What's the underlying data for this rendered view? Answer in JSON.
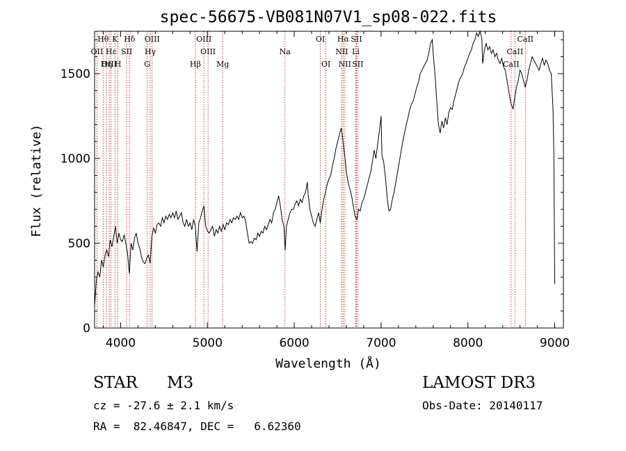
{
  "chart_data": {
    "type": "line",
    "title": "spec-56675-VB081N07V1_sp08-022.fits",
    "xlabel": "Wavelength (Å)",
    "ylabel": "Flux (relative)",
    "xlim": [
      3700,
      9100
    ],
    "ylim": [
      0,
      1750
    ],
    "xticks": [
      4000,
      5000,
      6000,
      7000,
      8000,
      9000
    ],
    "yticks": [
      0,
      500,
      1000,
      1500
    ],
    "grid": false,
    "series": [
      {
        "name": "flux",
        "color": "#000000",
        "points": [
          [
            3700,
            130
          ],
          [
            3720,
            280
          ],
          [
            3740,
            330
          ],
          [
            3760,
            300
          ],
          [
            3780,
            400
          ],
          [
            3800,
            360
          ],
          [
            3820,
            430
          ],
          [
            3840,
            460
          ],
          [
            3860,
            420
          ],
          [
            3880,
            520
          ],
          [
            3900,
            480
          ],
          [
            3920,
            540
          ],
          [
            3940,
            600
          ],
          [
            3960,
            500
          ],
          [
            3980,
            560
          ],
          [
            4000,
            520
          ],
          [
            4020,
            510
          ],
          [
            4040,
            550
          ],
          [
            4060,
            500
          ],
          [
            4080,
            440
          ],
          [
            4100,
            320
          ],
          [
            4120,
            500
          ],
          [
            4140,
            460
          ],
          [
            4160,
            530
          ],
          [
            4180,
            560
          ],
          [
            4200,
            500
          ],
          [
            4220,
            470
          ],
          [
            4240,
            420
          ],
          [
            4260,
            390
          ],
          [
            4280,
            380
          ],
          [
            4300,
            410
          ],
          [
            4320,
            430
          ],
          [
            4340,
            380
          ],
          [
            4360,
            540
          ],
          [
            4380,
            590
          ],
          [
            4400,
            560
          ],
          [
            4420,
            610
          ],
          [
            4440,
            620
          ],
          [
            4460,
            600
          ],
          [
            4480,
            650
          ],
          [
            4500,
            620
          ],
          [
            4520,
            660
          ],
          [
            4540,
            640
          ],
          [
            4560,
            670
          ],
          [
            4580,
            650
          ],
          [
            4600,
            680
          ],
          [
            4620,
            650
          ],
          [
            4640,
            690
          ],
          [
            4660,
            640
          ],
          [
            4680,
            660
          ],
          [
            4700,
            680
          ],
          [
            4720,
            620
          ],
          [
            4740,
            600
          ],
          [
            4760,
            640
          ],
          [
            4780,
            600
          ],
          [
            4800,
            620
          ],
          [
            4820,
            580
          ],
          [
            4840,
            640
          ],
          [
            4860,
            600
          ],
          [
            4880,
            450
          ],
          [
            4900,
            620
          ],
          [
            4920,
            650
          ],
          [
            4940,
            690
          ],
          [
            4960,
            720
          ],
          [
            4970,
            650
          ],
          [
            4980,
            600
          ],
          [
            5000,
            570
          ],
          [
            5020,
            560
          ],
          [
            5040,
            580
          ],
          [
            5060,
            600
          ],
          [
            5080,
            540
          ],
          [
            5100,
            580
          ],
          [
            5120,
            560
          ],
          [
            5140,
            600
          ],
          [
            5160,
            570
          ],
          [
            5180,
            610
          ],
          [
            5200,
            580
          ],
          [
            5220,
            620
          ],
          [
            5240,
            610
          ],
          [
            5260,
            640
          ],
          [
            5280,
            620
          ],
          [
            5300,
            650
          ],
          [
            5320,
            640
          ],
          [
            5340,
            660
          ],
          [
            5360,
            640
          ],
          [
            5380,
            680
          ],
          [
            5400,
            650
          ],
          [
            5420,
            660
          ],
          [
            5440,
            630
          ],
          [
            5460,
            560
          ],
          [
            5480,
            500
          ],
          [
            5500,
            510
          ],
          [
            5520,
            500
          ],
          [
            5540,
            530
          ],
          [
            5560,
            520
          ],
          [
            5580,
            560
          ],
          [
            5600,
            540
          ],
          [
            5620,
            570
          ],
          [
            5640,
            560
          ],
          [
            5660,
            600
          ],
          [
            5680,
            580
          ],
          [
            5700,
            610
          ],
          [
            5720,
            640
          ],
          [
            5740,
            620
          ],
          [
            5760,
            680
          ],
          [
            5780,
            700
          ],
          [
            5800,
            740
          ],
          [
            5820,
            780
          ],
          [
            5840,
            720
          ],
          [
            5860,
            640
          ],
          [
            5880,
            600
          ],
          [
            5895,
            460
          ],
          [
            5910,
            600
          ],
          [
            5930,
            640
          ],
          [
            5950,
            680
          ],
          [
            5970,
            700
          ],
          [
            5990,
            700
          ],
          [
            6010,
            730
          ],
          [
            6030,
            750
          ],
          [
            6050,
            720
          ],
          [
            6070,
            760
          ],
          [
            6090,
            740
          ],
          [
            6110,
            780
          ],
          [
            6130,
            800
          ],
          [
            6150,
            860
          ],
          [
            6160,
            790
          ],
          [
            6180,
            700
          ],
          [
            6200,
            660
          ],
          [
            6220,
            620
          ],
          [
            6240,
            600
          ],
          [
            6260,
            640
          ],
          [
            6280,
            680
          ],
          [
            6300,
            620
          ],
          [
            6320,
            700
          ],
          [
            6340,
            760
          ],
          [
            6360,
            800
          ],
          [
            6380,
            850
          ],
          [
            6400,
            880
          ],
          [
            6420,
            900
          ],
          [
            6440,
            960
          ],
          [
            6460,
            1000
          ],
          [
            6480,
            1060
          ],
          [
            6500,
            1100
          ],
          [
            6520,
            1140
          ],
          [
            6540,
            1180
          ],
          [
            6560,
            1110
          ],
          [
            6580,
            1020
          ],
          [
            6600,
            920
          ],
          [
            6620,
            860
          ],
          [
            6640,
            820
          ],
          [
            6660,
            780
          ],
          [
            6680,
            720
          ],
          [
            6700,
            660
          ],
          [
            6720,
            640
          ],
          [
            6740,
            700
          ],
          [
            6760,
            690
          ],
          [
            6780,
            740
          ],
          [
            6800,
            760
          ],
          [
            6820,
            800
          ],
          [
            6840,
            840
          ],
          [
            6860,
            880
          ],
          [
            6880,
            920
          ],
          [
            6900,
            980
          ],
          [
            6920,
            1050
          ],
          [
            6940,
            1000
          ],
          [
            6960,
            1080
          ],
          [
            6980,
            1160
          ],
          [
            7000,
            1250
          ],
          [
            7010,
            1020
          ],
          [
            7030,
            980
          ],
          [
            7050,
            890
          ],
          [
            7070,
            770
          ],
          [
            7090,
            690
          ],
          [
            7110,
            700
          ],
          [
            7130,
            760
          ],
          [
            7150,
            800
          ],
          [
            7170,
            860
          ],
          [
            7190,
            920
          ],
          [
            7210,
            980
          ],
          [
            7230,
            1040
          ],
          [
            7250,
            1100
          ],
          [
            7270,
            1150
          ],
          [
            7290,
            1200
          ],
          [
            7310,
            1240
          ],
          [
            7330,
            1290
          ],
          [
            7350,
            1320
          ],
          [
            7370,
            1340
          ],
          [
            7390,
            1380
          ],
          [
            7410,
            1420
          ],
          [
            7430,
            1450
          ],
          [
            7450,
            1500
          ],
          [
            7470,
            1520
          ],
          [
            7490,
            1540
          ],
          [
            7510,
            1560
          ],
          [
            7530,
            1580
          ],
          [
            7550,
            1620
          ],
          [
            7570,
            1680
          ],
          [
            7590,
            1700
          ],
          [
            7600,
            1620
          ],
          [
            7620,
            1500
          ],
          [
            7640,
            1350
          ],
          [
            7660,
            1200
          ],
          [
            7680,
            1150
          ],
          [
            7700,
            1220
          ],
          [
            7720,
            1180
          ],
          [
            7740,
            1240
          ],
          [
            7760,
            1200
          ],
          [
            7780,
            1270
          ],
          [
            7800,
            1300
          ],
          [
            7820,
            1290
          ],
          [
            7840,
            1340
          ],
          [
            7860,
            1380
          ],
          [
            7880,
            1420
          ],
          [
            7900,
            1460
          ],
          [
            7920,
            1480
          ],
          [
            7940,
            1500
          ],
          [
            7960,
            1540
          ],
          [
            7980,
            1560
          ],
          [
            8000,
            1590
          ],
          [
            8020,
            1620
          ],
          [
            8040,
            1640
          ],
          [
            8060,
            1680
          ],
          [
            8080,
            1700
          ],
          [
            8100,
            1740
          ],
          [
            8120,
            1720
          ],
          [
            8140,
            1750
          ],
          [
            8160,
            1710
          ],
          [
            8170,
            1560
          ],
          [
            8190,
            1640
          ],
          [
            8210,
            1680
          ],
          [
            8230,
            1640
          ],
          [
            8250,
            1660
          ],
          [
            8270,
            1620
          ],
          [
            8290,
            1640
          ],
          [
            8310,
            1600
          ],
          [
            8330,
            1620
          ],
          [
            8350,
            1580
          ],
          [
            8370,
            1560
          ],
          [
            8390,
            1590
          ],
          [
            8410,
            1540
          ],
          [
            8430,
            1520
          ],
          [
            8450,
            1460
          ],
          [
            8470,
            1400
          ],
          [
            8490,
            1340
          ],
          [
            8500,
            1320
          ],
          [
            8520,
            1290
          ],
          [
            8540,
            1360
          ],
          [
            8560,
            1420
          ],
          [
            8580,
            1460
          ],
          [
            8600,
            1520
          ],
          [
            8620,
            1500
          ],
          [
            8640,
            1460
          ],
          [
            8660,
            1420
          ],
          [
            8680,
            1460
          ],
          [
            8700,
            1520
          ],
          [
            8720,
            1560
          ],
          [
            8740,
            1600
          ],
          [
            8760,
            1580
          ],
          [
            8780,
            1560
          ],
          [
            8800,
            1540
          ],
          [
            8820,
            1520
          ],
          [
            8840,
            1560
          ],
          [
            8860,
            1590
          ],
          [
            8880,
            1550
          ],
          [
            8900,
            1580
          ],
          [
            8920,
            1560
          ],
          [
            8940,
            1520
          ],
          [
            8960,
            1500
          ],
          [
            8980,
            1300
          ],
          [
            8990,
            1020
          ],
          [
            9000,
            260
          ]
        ]
      }
    ],
    "lines": [
      {
        "label": "Hθ",
        "x": 3798,
        "row": 0
      },
      {
        "label": "OII",
        "x": 3727,
        "row": 1
      },
      {
        "label": "OIII",
        "x": 3869,
        "row": 2
      },
      {
        "label": "Hε",
        "x": 3889,
        "row": 1
      },
      {
        "label": "Hη",
        "x": 3835,
        "row": 2
      },
      {
        "label": "K",
        "x": 3934,
        "row": 0
      },
      {
        "label": "SII",
        "x": 4069,
        "row": 1
      },
      {
        "label": "H",
        "x": 3969,
        "row": 2
      },
      {
        "label": "Hδ",
        "x": 4102,
        "row": 0
      },
      {
        "label": "OIII",
        "x": 4363,
        "row": 0
      },
      {
        "label": "Hγ",
        "x": 4341,
        "row": 1
      },
      {
        "label": "G",
        "x": 4305,
        "row": 2
      },
      {
        "label": "OIII",
        "x": 4959,
        "row": 0
      },
      {
        "label": "OIII",
        "x": 5007,
        "row": 1
      },
      {
        "label": "Hβ",
        "x": 4861,
        "row": 2
      },
      {
        "label": "Mg",
        "x": 5175,
        "row": 2
      },
      {
        "label": "Na",
        "x": 5893,
        "row": 1
      },
      {
        "label": "OI",
        "x": 6300,
        "row": 0
      },
      {
        "label": "OI",
        "x": 6364,
        "row": 2
      },
      {
        "label": "Hα",
        "x": 6563,
        "row": 0
      },
      {
        "label": "NII",
        "x": 6548,
        "row": 1
      },
      {
        "label": "NII",
        "x": 6583,
        "row": 2
      },
      {
        "label": "SII",
        "x": 6716,
        "row": 0
      },
      {
        "label": "Li",
        "x": 6708,
        "row": 1
      },
      {
        "label": "SII",
        "x": 6731,
        "row": 2
      },
      {
        "label": "CaII",
        "x": 8662,
        "row": 0
      },
      {
        "label": "CaII",
        "x": 8542,
        "row": 1
      },
      {
        "label": "CaII",
        "x": 8498,
        "row": 2
      }
    ]
  },
  "info": {
    "object_class": "STAR",
    "subclass": "M3",
    "survey": "LAMOST DR3",
    "cz": "cz = -27.6 ± 2.1 km/s",
    "obs_date": "Obs-Date: 20140117",
    "coords": "RA =  82.46847, DEC =   6.62360"
  }
}
